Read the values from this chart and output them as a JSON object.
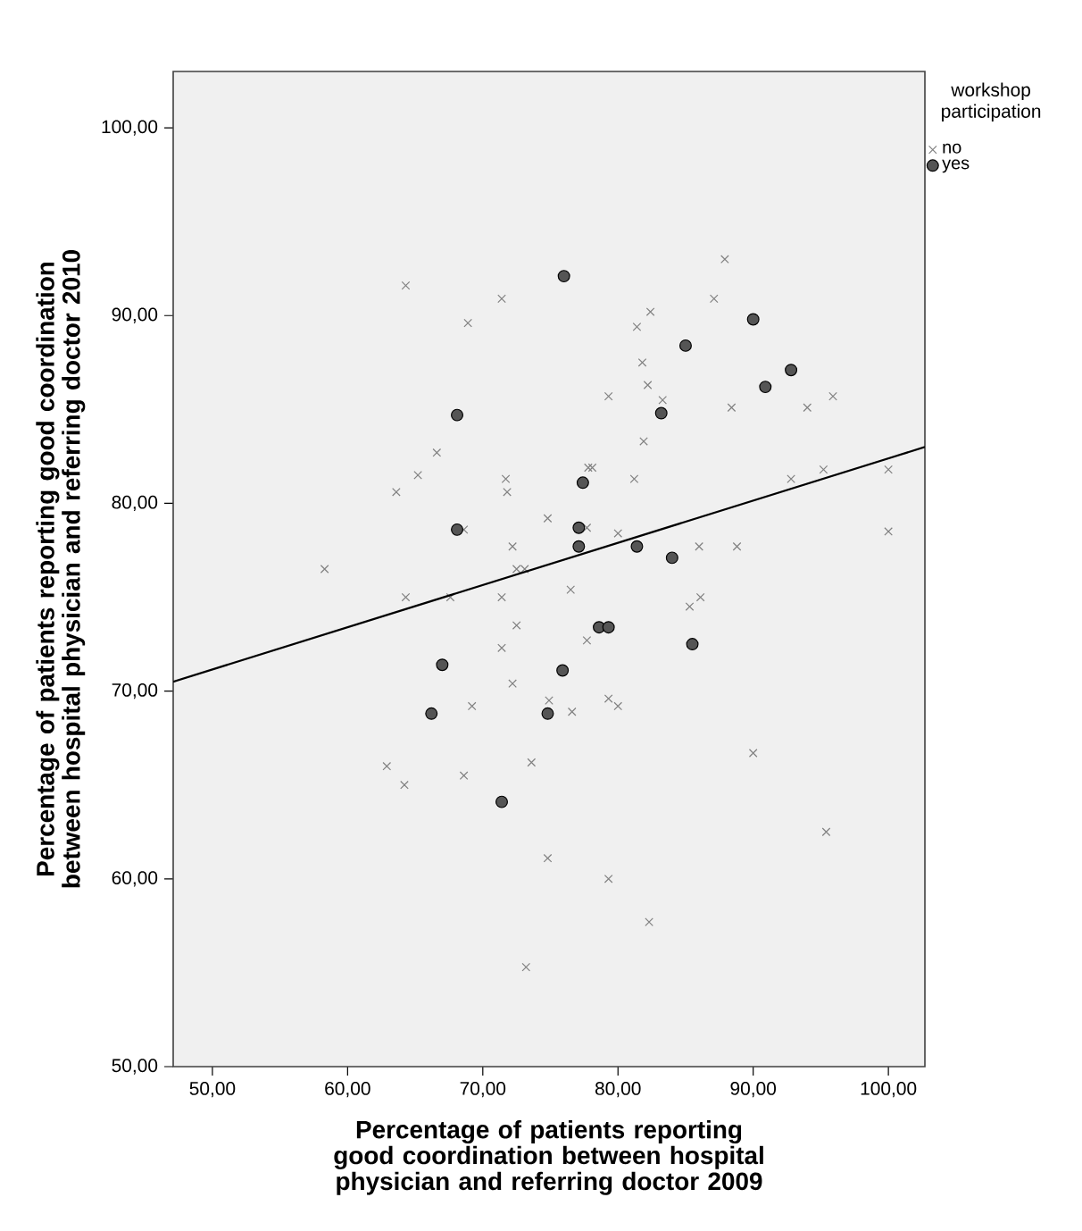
{
  "chart_data": {
    "type": "scatter",
    "xlabel": "Percentage of patients reporting good coordination between hospital physician and referring doctor 2009",
    "ylabel": "Percentage of patients reporting good coordination between hospital physician and referring doctor 2010",
    "legend_title": "workshop participation",
    "legend": "top right",
    "xlim": [
      47.1,
      102.7
    ],
    "ylim": [
      50,
      103
    ],
    "xticks": [
      {
        "value": 50,
        "label": "50,00"
      },
      {
        "value": 60,
        "label": "60,00"
      },
      {
        "value": 70,
        "label": "70,00"
      },
      {
        "value": 80,
        "label": "80,00"
      },
      {
        "value": 90,
        "label": "90,00"
      },
      {
        "value": 100,
        "label": "100,00"
      }
    ],
    "yticks": [
      {
        "value": 50,
        "label": "50,00"
      },
      {
        "value": 60,
        "label": "60,00"
      },
      {
        "value": 70,
        "label": "70,00"
      },
      {
        "value": 80,
        "label": "80,00"
      },
      {
        "value": 90,
        "label": "90,00"
      },
      {
        "value": 100,
        "label": "100,00"
      }
    ],
    "series": [
      {
        "name": "no",
        "color": "#808080",
        "marker": "cross",
        "x": [
          64.3,
          71.4,
          68.9,
          66.6,
          65.2,
          63.6,
          71.7,
          71.8,
          74.8,
          68.6,
          72.2,
          72.5,
          73.1,
          58.3,
          64.3,
          67.6,
          71.4,
          72.5,
          71.4,
          72.2,
          69.2,
          74.9,
          62.9,
          64.2,
          68.6,
          73.6,
          74.8,
          73.2,
          77.7,
          76.6,
          79.3,
          80.0,
          90.0,
          95.4,
          79.3,
          82.3,
          87.9,
          87.1,
          82.4,
          81.4,
          81.8,
          82.2,
          79.3,
          83.3,
          88.4,
          94.0,
          95.9,
          81.9,
          77.8,
          78.1,
          81.2,
          92.8,
          95.2,
          100.0,
          100.0,
          77.7,
          80.0,
          86.0,
          88.8,
          76.5,
          86.1,
          85.3
        ],
        "values": [
          91.6,
          90.9,
          89.6,
          82.7,
          81.5,
          80.6,
          81.3,
          80.6,
          79.2,
          78.6,
          77.7,
          76.5,
          76.5,
          76.5,
          75.0,
          75.0,
          75.0,
          73.5,
          72.3,
          70.4,
          69.2,
          69.5,
          66.0,
          65.0,
          65.5,
          66.2,
          61.1,
          55.3,
          72.7,
          68.9,
          69.6,
          69.2,
          66.7,
          62.5,
          60.0,
          57.7,
          93.0,
          90.9,
          90.2,
          89.4,
          87.5,
          86.3,
          85.7,
          85.5,
          85.1,
          85.1,
          85.7,
          83.3,
          81.9,
          81.9,
          81.3,
          81.3,
          81.8,
          81.8,
          78.5,
          78.7,
          78.4,
          77.7,
          77.7,
          75.4,
          75.0,
          74.5
        ]
      },
      {
        "name": "yes",
        "color": "#555555",
        "marker": "circle",
        "x": [
          68.1,
          68.1,
          67.0,
          66.2,
          74.8,
          71.4,
          78.6,
          79.3,
          85.5,
          75.9,
          76.0,
          90.0,
          85.0,
          92.8,
          90.9,
          83.2,
          77.4,
          77.1,
          77.1,
          81.4,
          84.0
        ],
        "values": [
          84.7,
          78.6,
          71.4,
          68.8,
          68.8,
          64.1,
          73.4,
          73.4,
          72.5,
          71.1,
          92.1,
          89.8,
          88.4,
          87.1,
          86.2,
          84.8,
          81.1,
          78.7,
          77.7,
          77.7,
          77.1
        ]
      },
      {
        "type": "line",
        "color": "#000000",
        "marker": "none",
        "line_style": "solid",
        "x": [
          47.1,
          102.7
        ],
        "values": [
          70.5,
          83.0
        ]
      }
    ]
  }
}
